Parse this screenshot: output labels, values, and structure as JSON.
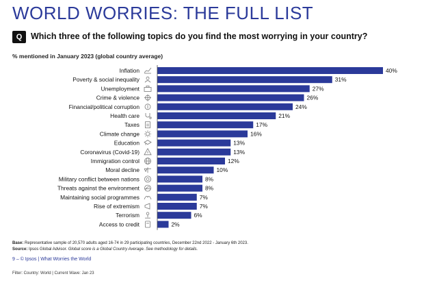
{
  "header": {
    "title": "WORLD WORRIES: THE FULL LIST",
    "q_badge": "Q",
    "question": "Which three of the following topics do you find the most worrying in your country?",
    "subtitle": "% mentioned in January 2023 (global country average)"
  },
  "chart_data": {
    "type": "bar",
    "orientation": "horizontal",
    "categories": [
      "Inflation",
      "Poverty & social inequality",
      "Unemployment",
      "Crime & violence",
      "Financial/political corruption",
      "Health care",
      "Taxes",
      "Climate change",
      "Education",
      "Coronavirus (Covid-19)",
      "Immigration control",
      "Moral decline",
      "Military conflict between nations",
      "Threats against the environment",
      "Maintaining social programmes",
      "Rise of extremism",
      "Terrorism",
      "Access to credit"
    ],
    "values": [
      40,
      31,
      27,
      26,
      24,
      21,
      17,
      16,
      13,
      13,
      12,
      10,
      8,
      8,
      7,
      7,
      6,
      2
    ],
    "value_labels": [
      "40%",
      "31%",
      "27%",
      "26%",
      "24%",
      "21%",
      "17%",
      "16%",
      "13%",
      "13%",
      "12%",
      "10%",
      "8%",
      "8%",
      "7%",
      "7%",
      "6%",
      "2%"
    ],
    "icons": [
      "trend-icon",
      "people-icon",
      "briefcase-icon",
      "crosshair-icon",
      "coin-icon",
      "stethoscope-icon",
      "receipt-icon",
      "sun-icon",
      "graduation-cap-icon",
      "virus-icon",
      "globe-icon",
      "scales-icon",
      "shield-icon",
      "leaf-globe-icon",
      "hands-icon",
      "megaphone-icon",
      "person-icon",
      "card-icon"
    ],
    "bar_color": "#2b3a9a",
    "xlim": [
      0,
      40
    ],
    "grid": false
  },
  "footer": {
    "base_label": "Base:",
    "base_text": "Representative sample of 20,570 adults aged 16-74 in 29 participating countries, December 22nd 2022 - January 6th 2023.",
    "source_label": "Source:",
    "source_text": "Ipsos Global Advisor.",
    "source_note": "Global score is a Global Country Average. See methodology for details.",
    "page_line": "9 – © Ipsos | What Worries the World",
    "filter": "Filter: Country: World | Current Wave: Jan 23"
  }
}
